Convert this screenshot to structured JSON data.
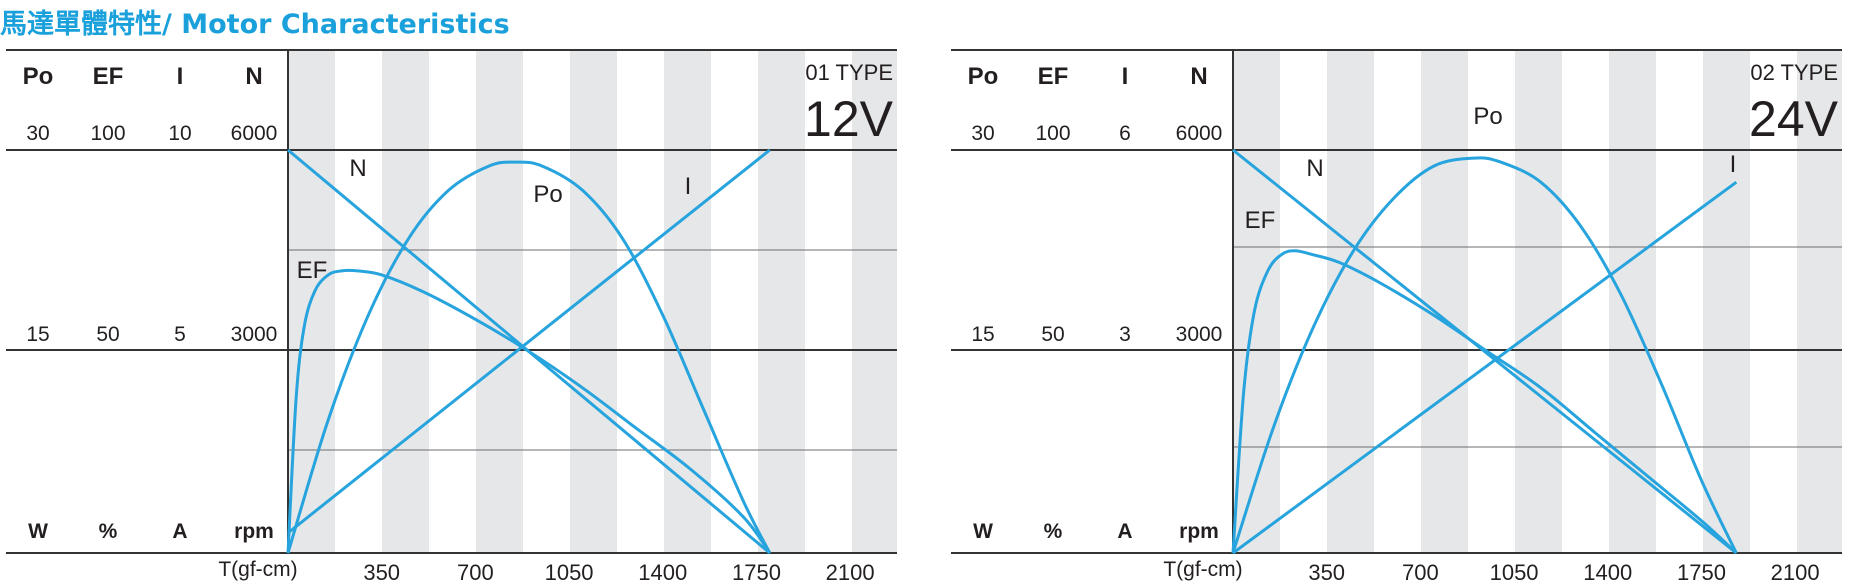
{
  "page_title": "馬達單體特性/ Motor Characteristics",
  "colors": {
    "accent": "#1aa0db",
    "curve": "#27a4dd",
    "band": "#e6e7e9",
    "axis": "#333333"
  },
  "chart_data": [
    {
      "type": "line",
      "type_label": "01 TYPE",
      "voltage_label": "12V",
      "column_headers": [
        "Po",
        "EF",
        "I",
        "N"
      ],
      "unit_labels": [
        "W",
        "%",
        "A",
        "rpm"
      ],
      "scale_top": [
        "30",
        "100",
        "10",
        "6000"
      ],
      "scale_mid": [
        "15",
        "50",
        "5",
        "3000"
      ],
      "xlabel": "T(gf-cm)",
      "x_ticks": [
        "350",
        "700",
        "1050",
        "1400",
        "1750",
        "2100"
      ],
      "xlim": [
        0,
        2275
      ],
      "ylim": [
        0,
        1
      ],
      "grid": true,
      "series": [
        {
          "name": "N",
          "x": [
            0,
            1800
          ],
          "y": [
            1.0,
            0.0
          ]
        },
        {
          "name": "I",
          "x": [
            0,
            1800
          ],
          "y": [
            0.05,
            1.0
          ]
        },
        {
          "name": "Po",
          "x": [
            0,
            150,
            300,
            450,
            600,
            750,
            850,
            950,
            1100,
            1250,
            1400,
            1550,
            1700,
            1800
          ],
          "y": [
            0,
            0.33,
            0.59,
            0.78,
            0.9,
            0.96,
            0.97,
            0.96,
            0.9,
            0.78,
            0.59,
            0.36,
            0.13,
            0.0
          ]
        },
        {
          "name": "EF",
          "x": [
            0,
            30,
            60,
            100,
            150,
            200,
            260,
            350,
            500,
            700,
            900,
            1100,
            1300,
            1500,
            1700,
            1800
          ],
          "y": [
            0,
            0.38,
            0.56,
            0.65,
            0.69,
            0.7,
            0.7,
            0.69,
            0.65,
            0.58,
            0.5,
            0.41,
            0.31,
            0.21,
            0.09,
            0.0
          ]
        }
      ],
      "series_labels": [
        "N",
        "I",
        "Po",
        "EF"
      ]
    },
    {
      "type": "line",
      "type_label": "02 TYPE",
      "voltage_label": "24V",
      "column_headers": [
        "Po",
        "EF",
        "I",
        "N"
      ],
      "unit_labels": [
        "W",
        "%",
        "A",
        "rpm"
      ],
      "scale_top": [
        "30",
        "100",
        "6",
        "6000"
      ],
      "scale_mid": [
        "15",
        "50",
        "3",
        "3000"
      ],
      "xlabel": "T(gf-cm)",
      "x_ticks": [
        "350",
        "700",
        "1050",
        "1400",
        "1750",
        "2100"
      ],
      "xlim": [
        0,
        2275
      ],
      "ylim": [
        0,
        1
      ],
      "grid": true,
      "series": [
        {
          "name": "N",
          "x": [
            0,
            1880
          ],
          "y": [
            1.0,
            0.0
          ]
        },
        {
          "name": "I",
          "x": [
            0,
            1880
          ],
          "y": [
            0.0,
            0.92
          ]
        },
        {
          "name": "Po",
          "x": [
            0,
            150,
            300,
            450,
            600,
            750,
            900,
            1000,
            1150,
            1300,
            1450,
            1600,
            1750,
            1880
          ],
          "y": [
            0,
            0.31,
            0.56,
            0.75,
            0.88,
            0.96,
            0.98,
            0.97,
            0.92,
            0.81,
            0.64,
            0.42,
            0.18,
            0.0
          ]
        },
        {
          "name": "EF",
          "x": [
            0,
            40,
            80,
            130,
            180,
            230,
            300,
            400,
            550,
            750,
            950,
            1150,
            1350,
            1550,
            1750,
            1880
          ],
          "y": [
            0,
            0.4,
            0.6,
            0.7,
            0.74,
            0.75,
            0.74,
            0.72,
            0.67,
            0.59,
            0.5,
            0.41,
            0.3,
            0.19,
            0.08,
            0.0
          ]
        }
      ],
      "series_labels": [
        "N",
        "I",
        "Po",
        "EF"
      ]
    }
  ]
}
